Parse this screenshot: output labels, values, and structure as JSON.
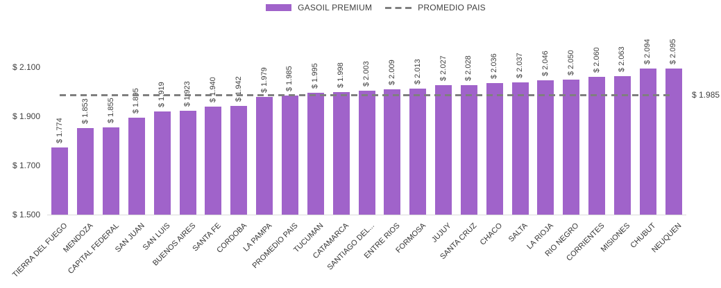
{
  "chart_data": {
    "type": "bar",
    "title": "",
    "xlabel": "",
    "ylabel": "",
    "grid": false,
    "legend_position": "top-center",
    "ylim": [
      1500,
      2100
    ],
    "yticks": [
      {
        "value": 1500,
        "label": "$ 1.500"
      },
      {
        "value": 1700,
        "label": "$ 1.700"
      },
      {
        "value": 1900,
        "label": "$ 1.900"
      },
      {
        "value": 2100,
        "label": "$ 2.100"
      }
    ],
    "series": [
      {
        "name": "GASOIL PREMIUM",
        "color": "#A063CA"
      }
    ],
    "categories": [
      "TIERRA DEL FUEGO",
      "MENDOZA",
      "CAPITAL FEDERAL",
      "SAN JUAN",
      "SAN LUIS",
      "BUENOS AIRES",
      "SANTA FE",
      "CORDOBA",
      "LA PAMPA",
      "PROMEDIO PAIS",
      "TUCUMAN",
      "CATAMARCA",
      "SANTIAGO DEL...",
      "ENTRE RIOS",
      "FORMOSA",
      "JUJUY",
      "SANTA CRUZ",
      "CHACO",
      "SALTA",
      "LA RIOJA",
      "RIO NEGRO",
      "CORRIENTES",
      "MISIONES",
      "CHUBUT",
      "NEUQUEN"
    ],
    "values": [
      1774,
      1853,
      1855,
      1895,
      1919,
      1923,
      1940,
      1942,
      1979,
      1985,
      1995,
      1998,
      2003,
      2009,
      2013,
      2027,
      2028,
      2036,
      2037,
      2046,
      2050,
      2060,
      2063,
      2094,
      2095
    ],
    "value_labels": [
      "$ 1.774",
      "$ 1.853",
      "$ 1.855",
      "$ 1.895",
      "$ 1.919",
      "$ 1.923",
      "$ 1.940",
      "$ 1.942",
      "$ 1.979",
      "$ 1.985",
      "$ 1.995",
      "$ 1.998",
      "$ 2.003",
      "$ 2.009",
      "$ 2.013",
      "$ 2.027",
      "$ 2.028",
      "$ 2.036",
      "$ 2.037",
      "$ 2.046",
      "$ 2.050",
      "$ 2.060",
      "$ 2.063",
      "$ 2.094",
      "$ 2.095"
    ],
    "average_line": {
      "name": "PROMEDIO PAIS",
      "value": 1985,
      "label": "$ 1.985",
      "color": "#7F7F7F"
    }
  }
}
